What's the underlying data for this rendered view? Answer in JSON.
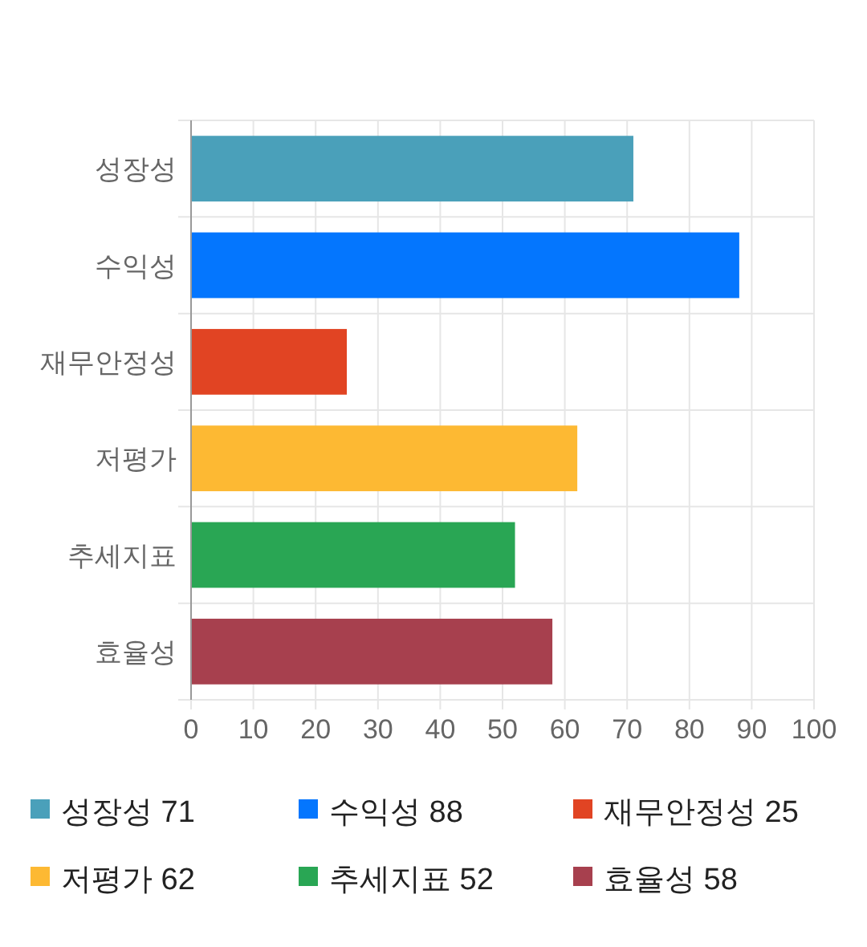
{
  "chart_data": {
    "type": "bar",
    "orientation": "horizontal",
    "stacked": true,
    "categories": [
      "성장성",
      "수익성",
      "재무안정성",
      "저평가",
      "추세지표",
      "효율성"
    ],
    "series": [
      {
        "name": "성장성 71",
        "color": "#4aa0ba",
        "values": [
          71,
          null,
          null,
          null,
          null,
          null
        ]
      },
      {
        "name": "수익성 88",
        "color": "#0476fe",
        "values": [
          null,
          88,
          null,
          null,
          null,
          null
        ]
      },
      {
        "name": "재무안정성 25",
        "color": "#e14423",
        "values": [
          null,
          null,
          25,
          null,
          null,
          null
        ]
      },
      {
        "name": "저평가 62",
        "color": "#fdb933",
        "values": [
          null,
          null,
          null,
          62,
          null,
          null
        ]
      },
      {
        "name": "추세지표 52",
        "color": "#29a654",
        "values": [
          null,
          null,
          null,
          null,
          52,
          null
        ]
      },
      {
        "name": "효율성 58",
        "color": "#a7404e",
        "values": [
          null,
          null,
          null,
          null,
          null,
          58
        ]
      }
    ],
    "xlim": [
      0,
      100
    ],
    "xticks": [
      0,
      10,
      20,
      30,
      40,
      50,
      60,
      70,
      80,
      90,
      100
    ],
    "grid": true,
    "legend": "bottom"
  }
}
